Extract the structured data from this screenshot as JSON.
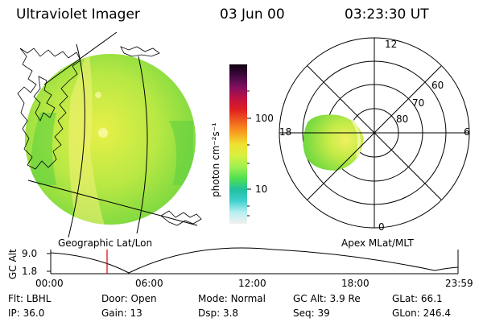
{
  "header": {
    "instrument": "Ultraviolet Imager",
    "date": "03 Jun 00",
    "time": "03:23:30 UT"
  },
  "colorbar": {
    "label": "photon cm⁻²s⁻¹",
    "ticks": [
      "100",
      "10"
    ],
    "colors": [
      "#f0f0f0",
      "#b8f0f0",
      "#40d0d0",
      "#20c0a0",
      "#50e050",
      "#a0f050",
      "#d8f040",
      "#f0e030",
      "#f8a020",
      "#f06020",
      "#e02020",
      "#c01040",
      "#801060",
      "#400840",
      "#100010"
    ]
  },
  "panels": {
    "left_caption": "Geographic Lat/Lon",
    "right_caption": "Apex MLat/MLT"
  },
  "polar_plot": {
    "ring_labels": [
      "60",
      "70",
      "80"
    ],
    "mlt_labels": [
      "12",
      "6",
      "0",
      "18"
    ]
  },
  "altitude_track": {
    "axis_title": "GC Alt",
    "y_ticks": [
      "9.0",
      "1.8"
    ],
    "x_ticks": [
      "00:00",
      "06:00",
      "12:00",
      "18:00",
      "23:59"
    ],
    "marker_time": "03:23:30",
    "marker_color": "#e00000"
  },
  "footer": {
    "row1": [
      {
        "label": "Flt:",
        "value": "LBHL"
      },
      {
        "label": "Door:",
        "value": "Open"
      },
      {
        "label": "Mode:",
        "value": "Normal"
      },
      {
        "label": "GC Alt:",
        "value": "3.9 Re"
      },
      {
        "label": "GLat:",
        "value": "66.1"
      }
    ],
    "row2": [
      {
        "label": "IP:",
        "value": "36.0"
      },
      {
        "label": "Gain:",
        "value": "13"
      },
      {
        "label": "Dsp:",
        "value": "3.8"
      },
      {
        "label": "Seq:",
        "value": "39"
      },
      {
        "label": "GLon:",
        "value": "246.4"
      }
    ]
  }
}
